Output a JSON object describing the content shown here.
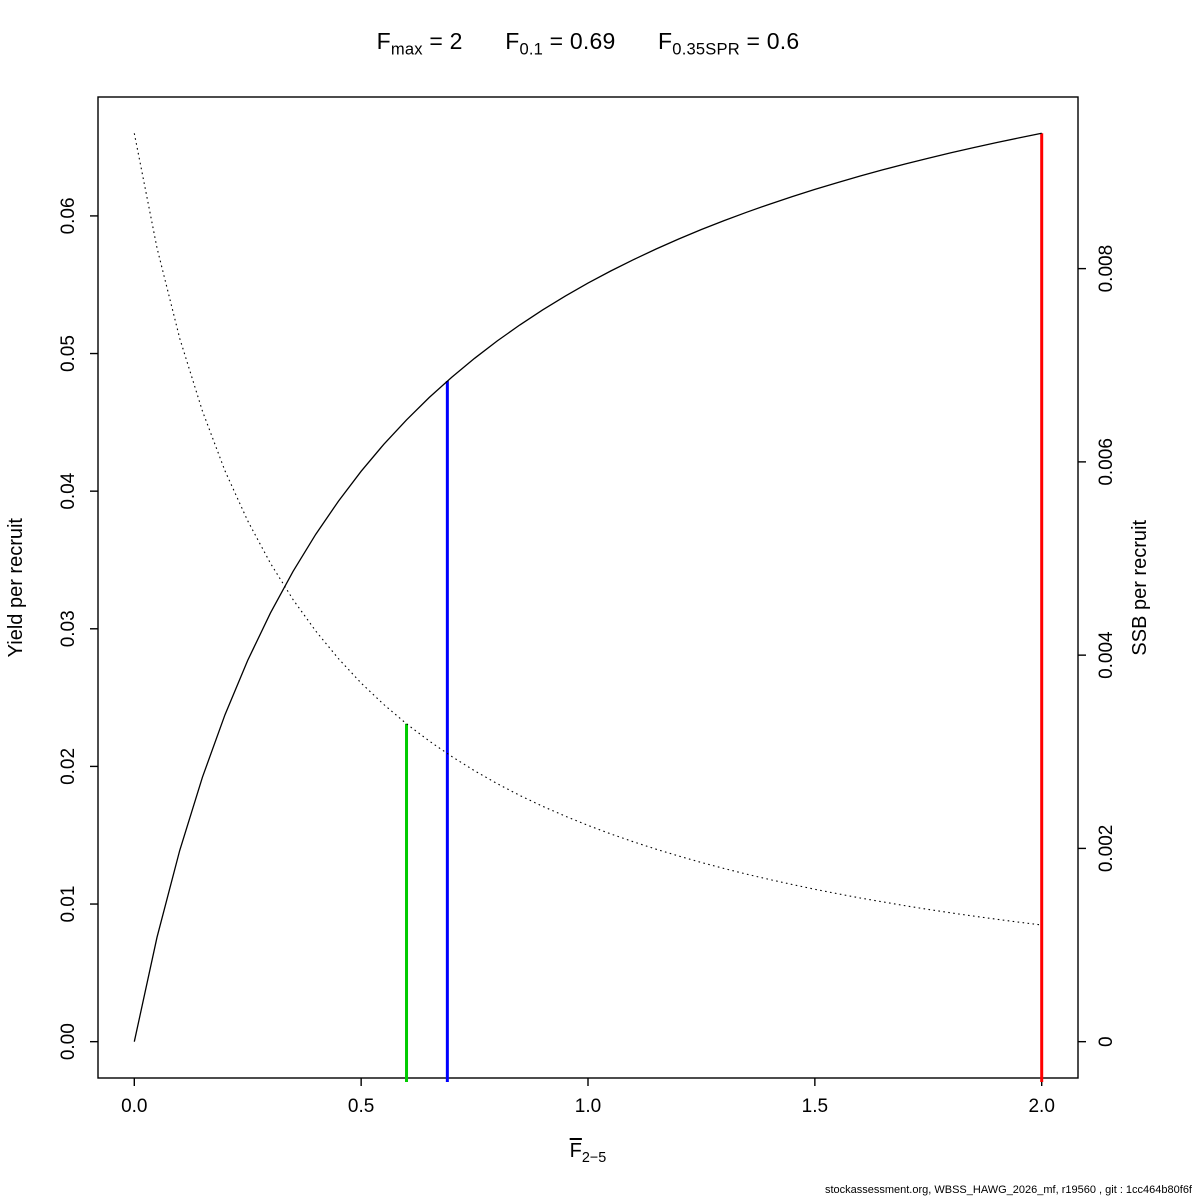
{
  "footer": {
    "text": "stockassessment.org, WBSS_HAWG_2026_mf, r19560 , git : 1cc464b80f6f"
  },
  "chart_data": {
    "type": "line",
    "title": "Fmax = 2    F0.1 = 0.69    F0.35SPR = 0.6",
    "title_parts": [
      {
        "base": "F",
        "sub": "max",
        "rest": " = 2"
      },
      {
        "base": "F",
        "sub": "0.1",
        "rest": " = 0.69"
      },
      {
        "base": "F",
        "sub": "0.35SPR",
        "rest": " = 0.6"
      }
    ],
    "axes": {
      "x": {
        "label_base": "F",
        "label_sub": "2−5",
        "lim": [
          0,
          2
        ],
        "ticks": [
          0.0,
          0.5,
          1.0,
          1.5,
          2.0
        ],
        "tick_labels": [
          "0.0",
          "0.5",
          "1.0",
          "1.5",
          "2.0"
        ]
      },
      "left": {
        "label": "Yield per recruit",
        "lim": [
          0,
          0.066
        ],
        "ticks": [
          0.0,
          0.01,
          0.02,
          0.03,
          0.04,
          0.05,
          0.06
        ],
        "tick_labels": [
          "0.00",
          "0.01",
          "0.02",
          "0.03",
          "0.04",
          "0.05",
          "0.06"
        ]
      },
      "right": {
        "label": "SSB per recruit",
        "lim": [
          0,
          0.0094
        ],
        "ticks": [
          0,
          0.002,
          0.004,
          0.006,
          0.008
        ],
        "tick_labels": [
          "0",
          "0.002",
          "0.004",
          "0.006",
          "0.008"
        ]
      }
    },
    "x": [
      0,
      0.05,
      0.1,
      0.15,
      0.2,
      0.25,
      0.3,
      0.35,
      0.4,
      0.45,
      0.5,
      0.55,
      0.6,
      0.65,
      0.7,
      0.75,
      0.8,
      0.85,
      0.9,
      0.95,
      1.0,
      1.05,
      1.1,
      1.15,
      1.2,
      1.25,
      1.3,
      1.35,
      1.4,
      1.45,
      1.5,
      1.55,
      1.6,
      1.65,
      1.7,
      1.75,
      1.8,
      1.85,
      1.9,
      1.95,
      2.0
    ],
    "series": [
      {
        "name": "Yield per recruit",
        "axis": "left",
        "style": "solid",
        "color": "#000000",
        "values": [
          0,
          0.007583,
          0.013887,
          0.019208,
          0.023761,
          0.027701,
          0.031143,
          0.034178,
          0.036871,
          0.039278,
          0.041444,
          0.043402,
          0.04518,
          0.046803,
          0.048289,
          0.049656,
          0.050917,
          0.052084,
          0.053167,
          0.054175,
          0.055116,
          0.055996,
          0.056821,
          0.057594,
          0.058323,
          0.059009,
          0.059658,
          0.060271,
          0.060852,
          0.061402,
          0.061926,
          0.062423,
          0.062897,
          0.063349,
          0.06378,
          0.064192,
          0.064586,
          0.064963,
          0.065325,
          0.065671,
          0.066003
        ]
      },
      {
        "name": "SSB per recruit",
        "axis": "right",
        "style": "dotted",
        "color": "#000000",
        "values": [
          0.0094,
          0.008214,
          0.007279,
          0.006527,
          0.005907,
          0.00539,
          0.004951,
          0.004574,
          0.004249,
          0.003963,
          0.003712,
          0.003489,
          0.00329,
          0.003111,
          0.00295,
          0.002803,
          0.00267,
          0.002548,
          0.002436,
          0.002333,
          0.002238,
          0.00215,
          0.002068,
          0.001992,
          0.001921,
          0.001854,
          0.001792,
          0.001733,
          0.001678,
          0.001626,
          0.001577,
          0.001531,
          0.001487,
          0.001446,
          0.001406,
          0.001369,
          0.001333,
          0.001299,
          0.001267,
          0.001236,
          0.001207
        ]
      }
    ],
    "ref_lines": [
      {
        "name": "f035spr-line",
        "label": "F0.35SPR = 0.6",
        "x": 0.6,
        "y_top": 0.00329,
        "axis": "right",
        "color": "#00CC00"
      },
      {
        "name": "f01-line",
        "label": "F0.1 = 0.69",
        "x": 0.69,
        "y_top": 0.048,
        "axis": "left",
        "color": "#0000FF"
      },
      {
        "name": "fmax-line",
        "label": "Fmax = 2",
        "x": 2.0,
        "y_top": 0.066003,
        "axis": "left",
        "color": "#FF0000"
      }
    ]
  }
}
